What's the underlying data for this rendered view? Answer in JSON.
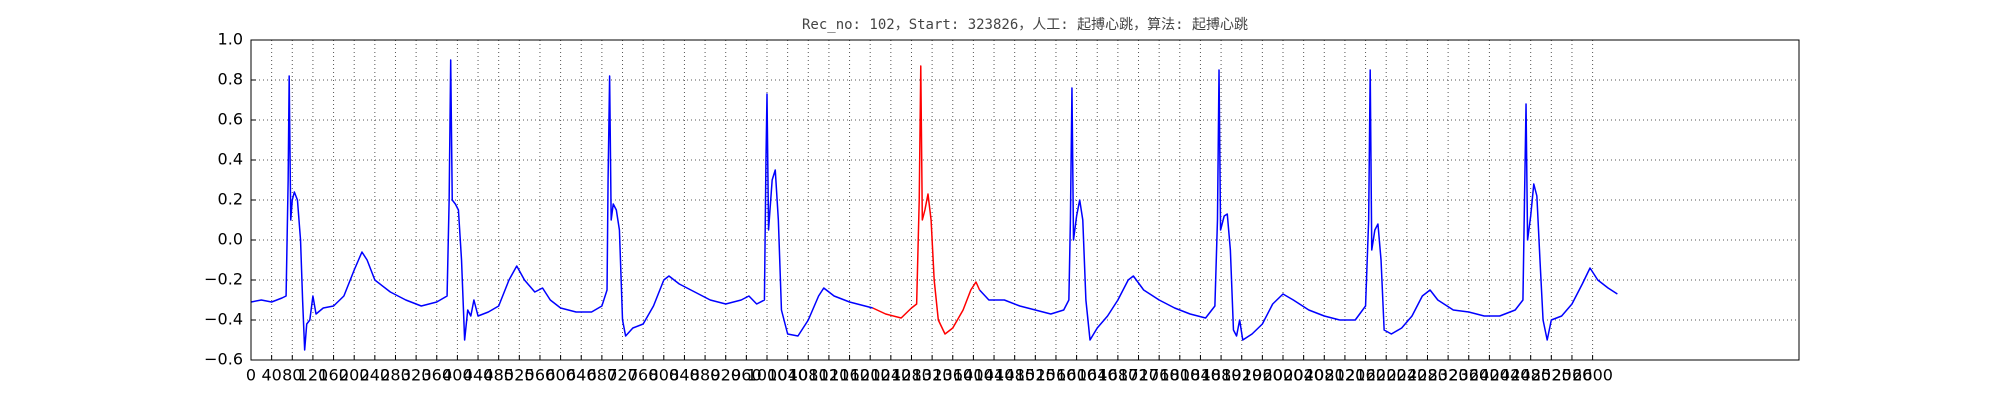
{
  "chart_data": {
    "type": "line",
    "title": "Rec_no: 102，Start: 323826，人工: 起搏心跳，算法: 起搏心跳",
    "grid": true,
    "xlim": [
      0,
      3000
    ],
    "ylim": [
      -0.6,
      1.0
    ],
    "xticks": [
      0,
      40,
      80,
      120,
      160,
      200,
      240,
      280,
      320,
      360,
      400,
      440,
      480,
      520,
      560,
      600,
      640,
      680,
      720,
      760,
      800,
      840,
      880,
      920,
      960,
      1000,
      1040,
      1080,
      1120,
      1160,
      1200,
      1240,
      1280,
      1320,
      1360,
      1400,
      1440,
      1480,
      1520,
      1560,
      1600,
      1640,
      1680,
      1720,
      1760,
      1800,
      1840,
      1880,
      1920,
      1960,
      2000,
      2040,
      2080,
      2120,
      2160,
      2200,
      2240,
      2280,
      2320,
      2360,
      2400,
      2440,
      2480,
      2520,
      2560,
      2600
    ],
    "yticks": [
      {
        "value": -0.6,
        "label": "−0.6"
      },
      {
        "value": -0.4,
        "label": "−0.4"
      },
      {
        "value": -0.2,
        "label": "−0.2"
      },
      {
        "value": 0,
        "label": "0.0"
      },
      0.2,
      0.4,
      0.6,
      0.8,
      {
        "value": 1,
        "label": "1.0"
      }
    ],
    "series": [
      {
        "color": "#0000ff",
        "x": [
          0,
          20,
          40,
          60,
          68,
          72,
          74,
          77,
          80,
          84,
          90,
          96,
          100,
          104,
          108,
          114,
          120,
          126,
          140,
          160,
          180,
          200,
          215,
          225,
          240,
          270,
          300,
          330,
          360,
          380,
          384,
          387,
          390,
          396,
          402,
          408,
          414,
          420,
          426,
          432,
          440,
          460,
          480,
          500,
          515,
          530,
          550,
          565,
          580,
          600,
          630,
          660,
          680,
          690,
          692,
          695,
          698,
          702,
          708,
          714,
          720,
          726,
          740,
          760,
          780,
          800,
          810,
          830,
          860,
          890,
          920,
          950,
          965,
          980,
          995,
          998,
          1000,
          1003,
          1010,
          1016,
          1022,
          1028,
          1040,
          1060,
          1080,
          1100,
          1110,
          1130,
          1160,
          1190,
          1205,
          1300,
          1412,
          1430,
          1460,
          1490,
          1520,
          1550,
          1575,
          1585,
          1588,
          1591,
          1594,
          1600,
          1606,
          1612,
          1618,
          1626,
          1640,
          1660,
          1680,
          1700,
          1710,
          1730,
          1760,
          1790,
          1820,
          1850,
          1868,
          1873,
          1876,
          1879,
          1886,
          1892,
          1898,
          1904,
          1910,
          1916,
          1922,
          1940,
          1960,
          1980,
          2000,
          2020,
          2050,
          2080,
          2110,
          2140,
          2160,
          2166,
          2169,
          2172,
          2178,
          2184,
          2190,
          2196,
          2210,
          2230,
          2250,
          2270,
          2285,
          2300,
          2330,
          2360,
          2390,
          2420,
          2450,
          2465,
          2468,
          2471,
          2474,
          2480,
          2486,
          2492,
          2498,
          2504,
          2512,
          2520,
          2540,
          2560,
          2580,
          2595,
          2610,
          2630,
          2648
        ],
        "values": [
          -0.31,
          -0.3,
          -0.31,
          -0.29,
          -0.28,
          0.3,
          0.82,
          0.1,
          0.2,
          0.24,
          0.2,
          0.0,
          -0.3,
          -0.55,
          -0.42,
          -0.4,
          -0.28,
          -0.37,
          -0.34,
          -0.33,
          -0.28,
          -0.15,
          -0.06,
          -0.1,
          -0.2,
          -0.26,
          -0.3,
          -0.33,
          -0.31,
          -0.28,
          0.2,
          0.9,
          0.2,
          0.18,
          0.15,
          -0.1,
          -0.5,
          -0.35,
          -0.38,
          -0.3,
          -0.38,
          -0.36,
          -0.33,
          -0.2,
          -0.13,
          -0.2,
          -0.26,
          -0.24,
          -0.3,
          -0.34,
          -0.36,
          -0.36,
          -0.33,
          -0.25,
          0.3,
          0.82,
          0.1,
          0.18,
          0.15,
          0.05,
          -0.4,
          -0.48,
          -0.44,
          -0.42,
          -0.33,
          -0.2,
          -0.18,
          -0.22,
          -0.26,
          -0.3,
          -0.32,
          -0.3,
          -0.28,
          -0.32,
          -0.3,
          0.4,
          0.73,
          0.05,
          0.3,
          0.35,
          0.1,
          -0.35,
          -0.47,
          -0.48,
          -0.4,
          -0.28,
          -0.24,
          -0.28,
          -0.31,
          -0.33,
          -0.34,
          null,
          -0.25,
          -0.3,
          -0.3,
          -0.33,
          -0.35,
          -0.37,
          -0.35,
          -0.3,
          0.1,
          0.76,
          0.0,
          0.12,
          0.2,
          0.1,
          -0.3,
          -0.5,
          -0.44,
          -0.38,
          -0.3,
          -0.2,
          -0.18,
          -0.25,
          -0.3,
          -0.34,
          -0.37,
          -0.39,
          -0.33,
          0.1,
          0.85,
          0.05,
          0.12,
          0.13,
          -0.05,
          -0.45,
          -0.48,
          -0.4,
          -0.5,
          -0.47,
          -0.42,
          -0.32,
          -0.27,
          -0.3,
          -0.35,
          -0.38,
          -0.4,
          -0.4,
          -0.33,
          0.1,
          0.85,
          -0.05,
          0.05,
          0.08,
          -0.1,
          -0.45,
          -0.47,
          -0.44,
          -0.38,
          -0.28,
          -0.25,
          -0.3,
          -0.35,
          -0.36,
          -0.38,
          -0.38,
          -0.35,
          -0.3,
          0.2,
          0.68,
          0.0,
          0.12,
          0.28,
          0.22,
          -0.1,
          -0.4,
          -0.5,
          -0.4,
          -0.38,
          -0.32,
          -0.22,
          -0.14,
          -0.2,
          -0.24,
          -0.27
        ]
      },
      {
        "color": "#ff0000",
        "x": [
          1205,
          1230,
          1260,
          1280,
          1290,
          1295,
          1298,
          1301,
          1306,
          1312,
          1318,
          1324,
          1332,
          1345,
          1360,
          1380,
          1395,
          1405,
          1412
        ],
        "values": [
          -0.34,
          -0.37,
          -0.39,
          -0.34,
          -0.32,
          0.2,
          0.87,
          0.1,
          0.15,
          0.23,
          0.1,
          -0.2,
          -0.4,
          -0.47,
          -0.44,
          -0.35,
          -0.25,
          -0.21,
          -0.25
        ]
      }
    ]
  }
}
